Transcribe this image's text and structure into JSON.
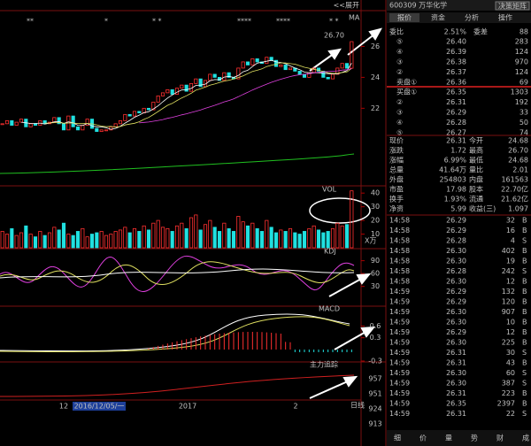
{
  "header": {
    "code_name": "600309 万华化学",
    "button": "决策矩阵"
  },
  "tabs": [
    "报价",
    "资金",
    "分析",
    "操作"
  ],
  "order_book": {
    "ratio_label": "委比",
    "ratio": "2.51%",
    "diff_label": "委差",
    "diff": "88",
    "asks": [
      {
        "label": "⑤",
        "price": "26.40",
        "volume": "283"
      },
      {
        "label": "④",
        "price": "26.39",
        "volume": "124"
      },
      {
        "label": "③",
        "price": "26.38",
        "volume": "970"
      },
      {
        "label": "②",
        "price": "26.37",
        "volume": "124"
      },
      {
        "label": "卖盘①",
        "price": "26.36",
        "volume": "69"
      }
    ],
    "bids": [
      {
        "label": "买盘①",
        "price": "26.35",
        "volume": "1303"
      },
      {
        "label": "②",
        "price": "26.31",
        "volume": "192"
      },
      {
        "label": "③",
        "price": "26.29",
        "volume": "33"
      },
      {
        "label": "④",
        "price": "26.28",
        "volume": "50"
      },
      {
        "label": "⑤",
        "price": "26.27",
        "volume": "74"
      }
    ]
  },
  "quote": [
    [
      "现价",
      "26.31",
      "今开",
      "24.68"
    ],
    [
      "涨跌",
      "1.72",
      "最高",
      "26.70"
    ],
    [
      "涨幅",
      "6.99%",
      "最低",
      "24.68"
    ],
    [
      "总量",
      "41.64万",
      "量比",
      "2.01"
    ],
    [
      "外盘",
      "254803",
      "内盘",
      "161563"
    ],
    [
      "市盈",
      "17.98",
      "股本",
      "22.70亿"
    ],
    [
      "换手",
      "1.93%",
      "流通",
      "21.62亿"
    ],
    [
      "净资",
      "5.99",
      "收益(三)",
      "1.097"
    ]
  ],
  "trades": [
    [
      "14:58",
      "26.29",
      "32",
      "B"
    ],
    [
      "14:58",
      "26.29",
      "16",
      "B"
    ],
    [
      "14:58",
      "26.28",
      "4",
      "S"
    ],
    [
      "14:58",
      "26.30",
      "402",
      "B"
    ],
    [
      "14:58",
      "26.30",
      "19",
      "B"
    ],
    [
      "14:58",
      "26.28",
      "242",
      "S"
    ],
    [
      "14:58",
      "26.30",
      "12",
      "B"
    ],
    [
      "14:59",
      "26.29",
      "132",
      "B"
    ],
    [
      "14:59",
      "26.29",
      "120",
      "B"
    ],
    [
      "14:59",
      "26.30",
      "907",
      "B"
    ],
    [
      "14:59",
      "26.30",
      "10",
      "B"
    ],
    [
      "14:59",
      "26.29",
      "12",
      "B"
    ],
    [
      "14:59",
      "26.30",
      "225",
      "B"
    ],
    [
      "14:59",
      "26.31",
      "30",
      "S"
    ],
    [
      "14:59",
      "26.31",
      "43",
      "B"
    ],
    [
      "14:59",
      "26.30",
      "60",
      "S"
    ],
    [
      "14:59",
      "26.30",
      "387",
      "S"
    ],
    [
      "14:59",
      "26.31",
      "223",
      "B"
    ],
    [
      "14:59",
      "26.35",
      "2397",
      "B"
    ],
    [
      "14:59",
      "26.31",
      "22",
      "S"
    ]
  ],
  "bottom_tabs": [
    "细",
    "价",
    "量",
    "势",
    "财",
    "成"
  ],
  "chart": {
    "expand": "<<展开",
    "markers": [
      "**",
      "*",
      "* *",
      "****",
      "****",
      "* *"
    ],
    "high_label": "26.70",
    "ma_label": "MA",
    "price": {
      "ylim": [
        17.1,
        28.2
      ],
      "ticks": [
        26,
        24,
        22
      ],
      "closes": [
        21.0,
        21.2,
        20.9,
        21.1,
        21.3,
        20.8,
        21.0,
        20.9,
        21.2,
        21.0,
        21.1,
        21.4,
        21.0,
        20.6,
        21.5,
        20.8,
        20.6,
        20.9,
        21.3,
        20.7,
        20.5,
        20.6,
        20.6,
        20.8,
        21.0,
        21.2,
        21.6,
        21.5,
        21.8,
        21.7,
        22.0,
        21.9,
        22.4,
        22.8,
        23.0,
        23.2,
        22.9,
        23.3,
        23.5,
        23.1,
        23.6,
        23.9,
        23.4,
        23.8,
        24.2,
        24.0,
        23.8,
        24.3,
        24.0,
        23.9,
        24.6,
        25.0,
        24.8,
        25.2,
        25.0,
        24.9,
        25.3,
        25.1,
        24.7,
        24.8,
        24.5,
        24.6,
        24.4,
        24.2,
        24.0,
        24.3,
        24.6,
        24.4,
        24.0,
        23.9,
        24.2,
        24.6,
        24.9,
        24.59,
        26.31
      ]
    },
    "volume": {
      "label": "VOL",
      "unit": "X万",
      "ylim": [
        0,
        44
      ],
      "ticks": [
        40,
        30,
        20,
        10
      ],
      "values": [
        12,
        10,
        14,
        9,
        11,
        16,
        10,
        8,
        12,
        9,
        11,
        15,
        13,
        18,
        10,
        9,
        12,
        14,
        8,
        10,
        11,
        12,
        9,
        10,
        12,
        13,
        15,
        11,
        14,
        12,
        16,
        13,
        18,
        20,
        15,
        14,
        12,
        16,
        18,
        14,
        22,
        24,
        13,
        17,
        20,
        15,
        12,
        18,
        14,
        12,
        23,
        19,
        16,
        18,
        14,
        12,
        20,
        15,
        11,
        13,
        12,
        14,
        11,
        10,
        12,
        14,
        16,
        13,
        11,
        12,
        14,
        18,
        16,
        17,
        41.64
      ]
    },
    "kdj": {
      "label": "KDJ",
      "ylim": [
        -14,
        116
      ],
      "ticks": [
        90,
        60,
        30
      ]
    },
    "macd": {
      "label": "MACD",
      "ylim": [
        -0.3,
        1.09
      ],
      "ticks": [
        0.6,
        0.3,
        -0.3
      ]
    },
    "force": {
      "label": "主力追踪",
      "ticks": [
        957,
        951,
        924,
        913
      ]
    },
    "xlabels": [
      "12",
      "2016/12/05/一",
      "2017",
      "2"
    ],
    "period": "日线"
  }
}
